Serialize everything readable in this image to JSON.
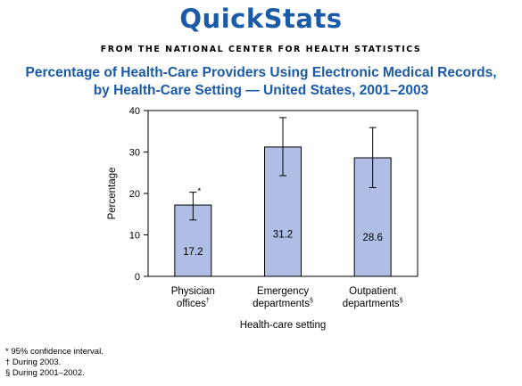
{
  "header": {
    "brand": "QuickStats",
    "source": "FROM THE NATIONAL CENTER FOR HEALTH STATISTICS"
  },
  "chart_data": {
    "type": "bar",
    "title_line1": "Percentage of Health-Care Providers Using Electronic Medical Records,",
    "title_line2": "by Health-Care Setting — United States, 2001–2003",
    "xlabel": "Health-care setting",
    "ylabel": "Percentage",
    "ylim": [
      0,
      40
    ],
    "yticks": [
      0,
      10,
      20,
      30,
      40
    ],
    "categories": [
      {
        "line1": "Physician",
        "line2": "offices",
        "mark": "†"
      },
      {
        "line1": "Emergency",
        "line2": "departments",
        "mark": "§"
      },
      {
        "line1": "Outpatient",
        "line2": "departments",
        "mark": "§"
      }
    ],
    "values": [
      17.2,
      31.2,
      28.6
    ],
    "value_labels": [
      "17.2",
      "31.2",
      "28.6"
    ],
    "ci_lower": [
      13.6,
      24.3,
      21.4
    ],
    "ci_upper": [
      20.3,
      38.3,
      35.9
    ],
    "ci_marker": "*",
    "bar_color": "#b0bde4",
    "bar_edge_color": "#000000",
    "grid": false
  },
  "footnotes": [
    "* 95% confidence interval.",
    "† During 2003.",
    "§ During 2001–2002."
  ]
}
